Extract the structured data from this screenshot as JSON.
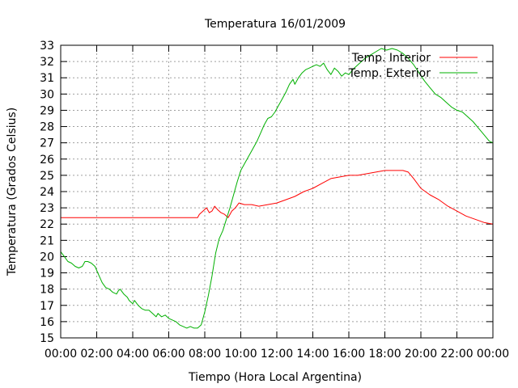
{
  "chart_data": {
    "type": "line",
    "title": "Temperatura 16/01/2009",
    "xlabel": "Tiempo (Hora Local Argentina)",
    "ylabel": "Temperatura (Grados Celsius)",
    "xlim": [
      0,
      24
    ],
    "ylim": [
      15,
      33
    ],
    "x_ticks": [
      "00:00",
      "02:00",
      "04:00",
      "06:00",
      "08:00",
      "10:00",
      "12:00",
      "14:00",
      "16:00",
      "18:00",
      "20:00",
      "22:00",
      "00:00"
    ],
    "y_ticks": [
      15,
      16,
      17,
      18,
      19,
      20,
      21,
      22,
      23,
      24,
      25,
      26,
      27,
      28,
      29,
      30,
      31,
      32,
      33
    ],
    "grid": true,
    "legend": "top-right",
    "series": [
      {
        "name": "Temp. Interior",
        "color": "#ff0000",
        "points": [
          [
            0,
            22.4
          ],
          [
            2,
            22.4
          ],
          [
            4,
            22.4
          ],
          [
            6,
            22.4
          ],
          [
            7.6,
            22.4
          ],
          [
            7.7,
            22.6
          ],
          [
            7.9,
            22.8
          ],
          [
            8.1,
            23.0
          ],
          [
            8.25,
            22.7
          ],
          [
            8.4,
            22.8
          ],
          [
            8.55,
            23.1
          ],
          [
            8.7,
            22.9
          ],
          [
            8.9,
            22.7
          ],
          [
            9.1,
            22.6
          ],
          [
            9.3,
            22.4
          ],
          [
            9.5,
            22.8
          ],
          [
            9.7,
            23.0
          ],
          [
            9.9,
            23.3
          ],
          [
            10.2,
            23.2
          ],
          [
            10.6,
            23.2
          ],
          [
            11,
            23.1
          ],
          [
            11.5,
            23.2
          ],
          [
            12,
            23.3
          ],
          [
            12.5,
            23.5
          ],
          [
            13,
            23.7
          ],
          [
            13.5,
            24.0
          ],
          [
            14,
            24.2
          ],
          [
            14.5,
            24.5
          ],
          [
            15,
            24.8
          ],
          [
            15.5,
            24.9
          ],
          [
            16,
            25.0
          ],
          [
            16.5,
            25.0
          ],
          [
            17,
            25.1
          ],
          [
            17.5,
            25.2
          ],
          [
            18,
            25.3
          ],
          [
            18.5,
            25.3
          ],
          [
            19,
            25.3
          ],
          [
            19.3,
            25.2
          ],
          [
            19.6,
            24.8
          ],
          [
            20,
            24.2
          ],
          [
            20.5,
            23.8
          ],
          [
            21,
            23.5
          ],
          [
            21.5,
            23.1
          ],
          [
            22,
            22.8
          ],
          [
            22.5,
            22.5
          ],
          [
            23,
            22.3
          ],
          [
            23.5,
            22.1
          ],
          [
            24,
            22.0
          ]
        ]
      },
      {
        "name": "Temp. Exterior",
        "color": "#00b000",
        "points": [
          [
            0,
            20.3
          ],
          [
            0.2,
            20.0
          ],
          [
            0.4,
            19.7
          ],
          [
            0.6,
            19.6
          ],
          [
            0.8,
            19.4
          ],
          [
            1.0,
            19.3
          ],
          [
            1.2,
            19.4
          ],
          [
            1.35,
            19.7
          ],
          [
            1.5,
            19.7
          ],
          [
            1.7,
            19.6
          ],
          [
            1.9,
            19.4
          ],
          [
            2.1,
            18.9
          ],
          [
            2.3,
            18.4
          ],
          [
            2.5,
            18.1
          ],
          [
            2.7,
            18.0
          ],
          [
            2.9,
            17.8
          ],
          [
            3.1,
            17.7
          ],
          [
            3.2,
            17.9
          ],
          [
            3.3,
            18.0
          ],
          [
            3.5,
            17.7
          ],
          [
            3.7,
            17.5
          ],
          [
            3.8,
            17.3
          ],
          [
            4.0,
            17.1
          ],
          [
            4.1,
            17.3
          ],
          [
            4.3,
            17.0
          ],
          [
            4.5,
            16.8
          ],
          [
            4.7,
            16.7
          ],
          [
            4.9,
            16.7
          ],
          [
            5.1,
            16.5
          ],
          [
            5.3,
            16.3
          ],
          [
            5.4,
            16.5
          ],
          [
            5.6,
            16.3
          ],
          [
            5.8,
            16.4
          ],
          [
            6.0,
            16.2
          ],
          [
            6.2,
            16.1
          ],
          [
            6.4,
            16.0
          ],
          [
            6.6,
            15.8
          ],
          [
            6.8,
            15.7
          ],
          [
            7.0,
            15.6
          ],
          [
            7.2,
            15.7
          ],
          [
            7.4,
            15.6
          ],
          [
            7.6,
            15.6
          ],
          [
            7.8,
            15.8
          ],
          [
            8.0,
            16.6
          ],
          [
            8.2,
            17.6
          ],
          [
            8.4,
            18.8
          ],
          [
            8.6,
            20.2
          ],
          [
            8.8,
            21.1
          ],
          [
            9.0,
            21.6
          ],
          [
            9.2,
            22.3
          ],
          [
            9.4,
            23.0
          ],
          [
            9.6,
            23.8
          ],
          [
            9.8,
            24.6
          ],
          [
            10.0,
            25.3
          ],
          [
            10.3,
            25.9
          ],
          [
            10.6,
            26.5
          ],
          [
            10.9,
            27.1
          ],
          [
            11.1,
            27.6
          ],
          [
            11.3,
            28.1
          ],
          [
            11.5,
            28.5
          ],
          [
            11.7,
            28.6
          ],
          [
            11.9,
            28.9
          ],
          [
            12.1,
            29.3
          ],
          [
            12.3,
            29.7
          ],
          [
            12.5,
            30.1
          ],
          [
            12.7,
            30.6
          ],
          [
            12.9,
            30.9
          ],
          [
            13.0,
            30.6
          ],
          [
            13.2,
            31.0
          ],
          [
            13.4,
            31.3
          ],
          [
            13.6,
            31.5
          ],
          [
            13.8,
            31.6
          ],
          [
            14.0,
            31.7
          ],
          [
            14.2,
            31.8
          ],
          [
            14.4,
            31.7
          ],
          [
            14.6,
            31.9
          ],
          [
            14.8,
            31.5
          ],
          [
            15.0,
            31.2
          ],
          [
            15.2,
            31.6
          ],
          [
            15.4,
            31.4
          ],
          [
            15.6,
            31.1
          ],
          [
            15.8,
            31.3
          ],
          [
            16.0,
            31.2
          ],
          [
            16.3,
            31.6
          ],
          [
            16.6,
            31.9
          ],
          [
            16.9,
            32.2
          ],
          [
            17.2,
            32.4
          ],
          [
            17.5,
            32.6
          ],
          [
            17.8,
            32.8
          ],
          [
            18.1,
            32.7
          ],
          [
            18.4,
            32.8
          ],
          [
            18.7,
            32.7
          ],
          [
            19.0,
            32.5
          ],
          [
            19.3,
            32.2
          ],
          [
            19.6,
            31.8
          ],
          [
            19.9,
            31.3
          ],
          [
            20.2,
            30.8
          ],
          [
            20.5,
            30.4
          ],
          [
            20.8,
            30.0
          ],
          [
            21.1,
            29.8
          ],
          [
            21.4,
            29.5
          ],
          [
            21.7,
            29.2
          ],
          [
            22.0,
            29.0
          ],
          [
            22.3,
            28.9
          ],
          [
            22.6,
            28.6
          ],
          [
            22.9,
            28.3
          ],
          [
            23.2,
            27.9
          ],
          [
            23.5,
            27.5
          ],
          [
            23.8,
            27.1
          ],
          [
            24.0,
            27.0
          ]
        ]
      }
    ]
  }
}
